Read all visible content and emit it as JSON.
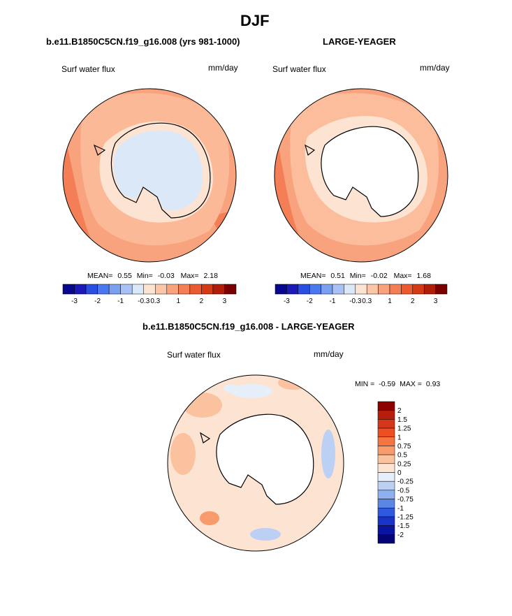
{
  "figure": {
    "title": "DJF",
    "panels": [
      {
        "id": "left",
        "title": "b.e11.B1850C5CN.f19_g16.008 (yrs 981-1000)",
        "variable": "Surf water flux",
        "units": "mm/day",
        "stats": {
          "mean_label": "MEAN=",
          "mean": "0.55",
          "min_label": "Min=",
          "min": "-0.03",
          "max_label": "Max=",
          "max": "2.18"
        }
      },
      {
        "id": "right",
        "title": "LARGE-YEAGER",
        "variable": "Surf water flux",
        "units": "mm/day",
        "stats": {
          "mean_label": "MEAN=",
          "mean": "0.51",
          "min_label": "Min=",
          "min": "-0.02",
          "max_label": "Max=",
          "max": "1.68"
        }
      },
      {
        "id": "diff",
        "title": "b.e11.B1850C5CN.f19_g16.008 - LARGE-YEAGER",
        "variable": "Surf water flux",
        "units": "mm/day",
        "stats": {
          "min_label": "MIN =",
          "min": "-0.59",
          "max_label": "MAX =",
          "max": "0.93"
        }
      }
    ]
  },
  "chart_data": [
    {
      "type": "heatmap",
      "title": "b.e11.B1850C5CN.f19_g16.008 (yrs 981-1000)",
      "projection": "south polar stereographic",
      "variable": "Surf water flux",
      "units": "mm/day",
      "mean": 0.55,
      "min": -0.03,
      "max": 2.18,
      "colorbar": {
        "orientation": "horizontal",
        "tick_labels": [
          "-3",
          "-2",
          "-1",
          "-0.3",
          "0.3",
          "1",
          "2",
          "3"
        ],
        "colors": [
          "#08088c",
          "#1a1ab8",
          "#2a4ee0",
          "#4a78ef",
          "#7ba0f0",
          "#a9c1f5",
          "#dbe8f8",
          "#fde4d2",
          "#fbc6a8",
          "#f9a27e",
          "#f47e55",
          "#ec5a30",
          "#d63a14",
          "#b01e0a",
          "#7a0000"
        ]
      }
    },
    {
      "type": "heatmap",
      "title": "LARGE-YEAGER",
      "projection": "south polar stereographic",
      "variable": "Surf water flux",
      "units": "mm/day",
      "mean": 0.51,
      "min": -0.02,
      "max": 1.68,
      "colorbar": {
        "orientation": "horizontal",
        "tick_labels": [
          "-3",
          "-2",
          "-1",
          "-0.3",
          "0.3",
          "1",
          "2",
          "3"
        ],
        "colors": [
          "#08088c",
          "#1a1ab8",
          "#2a4ee0",
          "#4a78ef",
          "#7ba0f0",
          "#a9c1f5",
          "#dbe8f8",
          "#fde4d2",
          "#fbc6a8",
          "#f9a27e",
          "#f47e55",
          "#ec5a30",
          "#d63a14",
          "#b01e0a",
          "#7a0000"
        ]
      }
    },
    {
      "type": "heatmap",
      "title": "b.e11.B1850C5CN.f19_g16.008 - LARGE-YEAGER",
      "projection": "south polar stereographic",
      "variable": "Surf water flux",
      "units": "mm/day",
      "min": -0.59,
      "max": 0.93,
      "colorbar": {
        "orientation": "vertical",
        "tick_labels": [
          "2",
          "1.5",
          "1.25",
          "1",
          "0.75",
          "0.5",
          "0.25",
          "0",
          "-0.25",
          "-0.5",
          "-0.75",
          "-1",
          "-1.25",
          "-1.5",
          "-2"
        ],
        "colors": [
          "#8c0000",
          "#b81d0c",
          "#d6361a",
          "#ee4f22",
          "#f57540",
          "#f79a6c",
          "#fac29e",
          "#fde4d2",
          "#e6eef9",
          "#bcd0f4",
          "#8fb0ef",
          "#5c86e6",
          "#2f5ae0",
          "#1a32c8",
          "#0a14a0",
          "#040478"
        ]
      }
    }
  ],
  "theme": {
    "ocean_low": "#fde4d2",
    "ocean_mid": "#f9b090",
    "ocean_high": "#f47e55",
    "land_white": "#ffffff",
    "interior_blue": "#dbe8f8",
    "coast_line": "#000000"
  }
}
